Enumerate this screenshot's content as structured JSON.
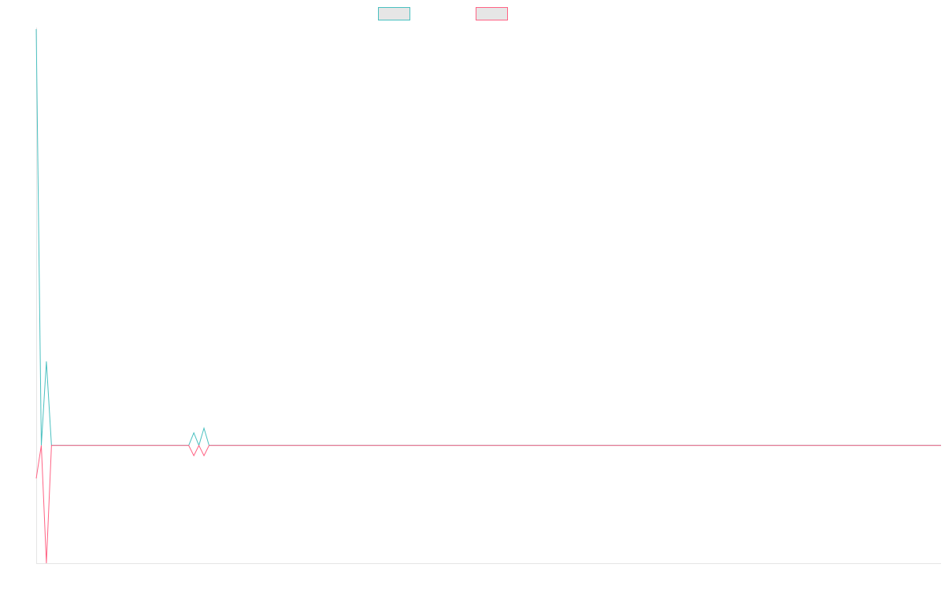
{
  "chart_data": {
    "type": "line",
    "title": "",
    "xlabel": "",
    "ylabel": "",
    "grid": false,
    "legend_placement": "top-center",
    "x": [
      0,
      1,
      2,
      3,
      4,
      5,
      6,
      7,
      8,
      9,
      10,
      11,
      12,
      13,
      14,
      15,
      16,
      17,
      18,
      19,
      20,
      21,
      22,
      23,
      24,
      25,
      26,
      27,
      28,
      29,
      30,
      31,
      32,
      33,
      34,
      35,
      36,
      37,
      38,
      39,
      40,
      41,
      42,
      43,
      44,
      45,
      46,
      47,
      48,
      49,
      50,
      51,
      52,
      53,
      54,
      55,
      56,
      57,
      58,
      59,
      60,
      61,
      62,
      63,
      64,
      65,
      66,
      67,
      68,
      69,
      70,
      71,
      72,
      73,
      74,
      75,
      76,
      77,
      78,
      79,
      80,
      81,
      82,
      83,
      84,
      85,
      86,
      87,
      88,
      89,
      90,
      91,
      92,
      93,
      94,
      95,
      96,
      97,
      98,
      99,
      100,
      101,
      102,
      103,
      104,
      105,
      106,
      107,
      108,
      109,
      110,
      111,
      112,
      113,
      114,
      115,
      116,
      117,
      118,
      119,
      120,
      121,
      122,
      123,
      124,
      125,
      126,
      127,
      128,
      129,
      130,
      131,
      132,
      133,
      134,
      135,
      136,
      137,
      138,
      139,
      140,
      141,
      142,
      143,
      144,
      145,
      146,
      147,
      148,
      149,
      150,
      151,
      152,
      153,
      154,
      155,
      156,
      157,
      158,
      159,
      160,
      161,
      162,
      163,
      164,
      165,
      166,
      167,
      168,
      169,
      170,
      171,
      172,
      173,
      174,
      175,
      176,
      177,
      178
    ],
    "ylim": [
      -150,
      530
    ],
    "series": [
      {
        "color": "#4bc0c0",
        "values": [
          530,
          0,
          107,
          0,
          0,
          0,
          0,
          0,
          0,
          0,
          0,
          0,
          0,
          0,
          0,
          0,
          0,
          0,
          0,
          0,
          0,
          0,
          0,
          0,
          0,
          0,
          0,
          0,
          0,
          0,
          0,
          16,
          0,
          22,
          0,
          0,
          0,
          0,
          0,
          0,
          0,
          0,
          0,
          0,
          0,
          0,
          0,
          0,
          0,
          0,
          0,
          0,
          0,
          0,
          0,
          0,
          0,
          0,
          0,
          0,
          0,
          0,
          0,
          0,
          0,
          0,
          0,
          0,
          0,
          0,
          0,
          0,
          0,
          0,
          0,
          0,
          0,
          0,
          0,
          0,
          0,
          0,
          0,
          0,
          0,
          0,
          0,
          0,
          0,
          0,
          0,
          0,
          0,
          0,
          0,
          0,
          0,
          0,
          0,
          0,
          0,
          0,
          0,
          0,
          0,
          0,
          0,
          0,
          0,
          0,
          0,
          0,
          0,
          0,
          0,
          0,
          0,
          0,
          0,
          0,
          0,
          0,
          0,
          0,
          0,
          0,
          0,
          0,
          0,
          0,
          0,
          0,
          0,
          0,
          0,
          0,
          0,
          0,
          0,
          0,
          0,
          0,
          0,
          0,
          0,
          0,
          0,
          0,
          0,
          0,
          0,
          0,
          0,
          0,
          0,
          0,
          0,
          0,
          0,
          0,
          0,
          0,
          0,
          0,
          0,
          0,
          0,
          0,
          0,
          0,
          0,
          0,
          0,
          0,
          0,
          0,
          0,
          0,
          0
        ]
      },
      {
        "color": "#ff6384",
        "values": [
          -42,
          0,
          -150,
          0,
          0,
          0,
          0,
          0,
          0,
          0,
          0,
          0,
          0,
          0,
          0,
          0,
          0,
          0,
          0,
          0,
          0,
          0,
          0,
          0,
          0,
          0,
          0,
          0,
          0,
          0,
          0,
          -13,
          0,
          -13,
          0,
          0,
          0,
          0,
          0,
          0,
          0,
          0,
          0,
          0,
          0,
          0,
          0,
          0,
          0,
          0,
          0,
          0,
          0,
          0,
          0,
          0,
          0,
          0,
          0,
          0,
          0,
          0,
          0,
          0,
          0,
          0,
          0,
          0,
          0,
          0,
          0,
          0,
          0,
          0,
          0,
          0,
          0,
          0,
          0,
          0,
          0,
          0,
          0,
          0,
          0,
          0,
          0,
          0,
          0,
          0,
          0,
          0,
          0,
          0,
          0,
          0,
          0,
          0,
          0,
          0,
          0,
          0,
          0,
          0,
          0,
          0,
          0,
          0,
          0,
          0,
          0,
          0,
          0,
          0,
          0,
          0,
          0,
          0,
          0,
          0,
          0,
          0,
          0,
          0,
          0,
          0,
          0,
          0,
          0,
          0,
          0,
          0,
          0,
          0,
          0,
          0,
          0,
          0,
          0,
          0,
          0,
          0,
          0,
          0,
          0,
          0,
          0,
          0,
          0,
          0,
          0,
          0,
          0,
          0,
          0,
          0,
          0,
          0,
          0,
          0,
          0,
          0,
          0,
          0,
          0,
          0,
          0,
          0,
          0,
          0,
          0,
          0,
          0,
          0,
          0,
          0,
          0,
          0,
          0
        ]
      }
    ],
    "legend": [
      {
        "color": "#4bc0c0",
        "fill": "#e6e6e6"
      },
      {
        "color": "#ff6384",
        "fill": "#e6e6e6"
      }
    ],
    "axis_color": "#e5e5e5"
  }
}
